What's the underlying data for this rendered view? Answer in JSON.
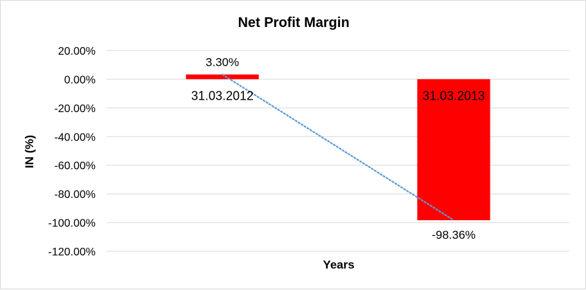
{
  "chart_data": {
    "type": "bar",
    "title": "Net Profit Margin",
    "xlabel": "Years",
    "ylabel": "IN (%)",
    "categories": [
      "31.03.2012",
      "31.03.2013"
    ],
    "series": [
      {
        "values": [
          3.3,
          -98.36
        ]
      }
    ],
    "data_labels": [
      "3.30%",
      "-98.36%"
    ],
    "yticks": [
      "20.00%",
      "0.00%",
      "-20.00%",
      "-40.00%",
      "-60.00%",
      "-80.00%",
      "-100.00%",
      "-120.00%"
    ],
    "ylim": [
      -120,
      20
    ],
    "grid": true,
    "legend": "none",
    "trendline": {
      "type": "linear",
      "style": "dotted"
    },
    "colors": {
      "bar": "#ff0000",
      "trendline": "#5b9bd5",
      "grid": "#d9d9d9"
    }
  }
}
